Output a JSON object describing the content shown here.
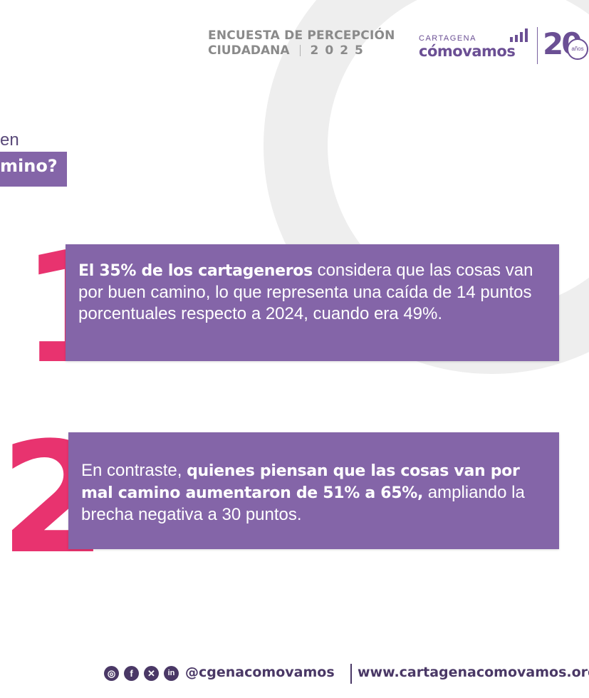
{
  "header": {
    "survey_line1": "ENCUESTA DE PERCEPCIÓN",
    "survey_line2_word": "CIUDADANA",
    "survey_year": "2025",
    "brand_city": "CARTAGENA",
    "brand_name": "cómovamos",
    "anniversary_number": "20",
    "anniversary_label": "años"
  },
  "question": {
    "fragment1": "en",
    "fragment2": "mino?"
  },
  "findings": [
    {
      "number": "1",
      "bold": "El 35% de los cartageneros",
      "text_after": " considera que las cosas van por buen camino, lo que representa una caída de 14 puntos porcentuales respecto a 2024, cuando era 49%."
    },
    {
      "number": "2",
      "text_before": "En contraste, ",
      "bold": "quienes piensan que las cosas van por mal camino aumentaron de 51% a 65%,",
      "text_after": " ampliando la brecha negativa a 30 puntos."
    }
  ],
  "footer": {
    "handle": "@cgenacomovamos",
    "website": "www.cartagenacomovamos.org",
    "icons": [
      "instagram-icon",
      "facebook-icon",
      "x-icon",
      "linkedin-icon"
    ]
  },
  "colors": {
    "purple": "#8465a8",
    "pink": "#e8336f",
    "brand": "#6b4f94"
  }
}
